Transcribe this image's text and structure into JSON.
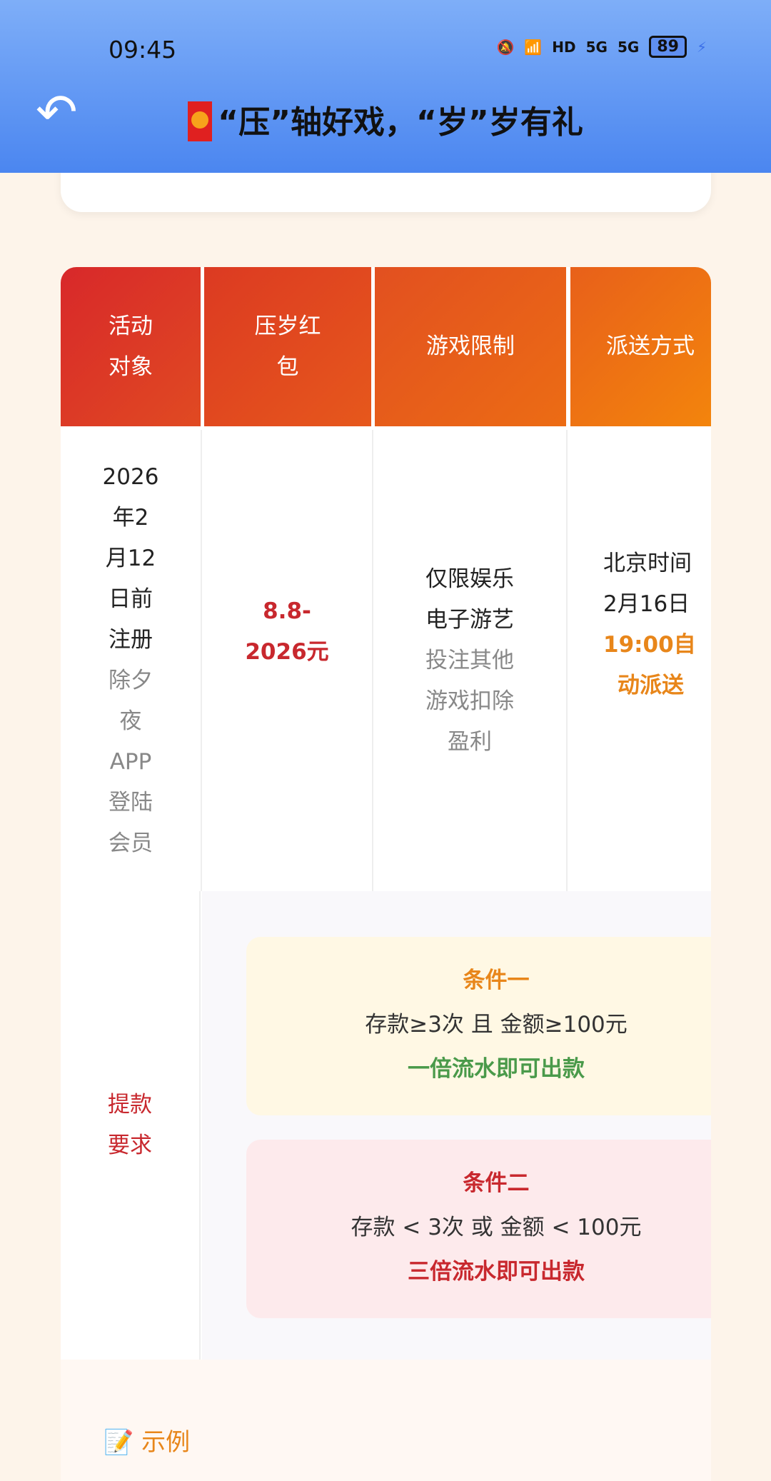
{
  "status_bar": {
    "time": "09:45",
    "icons": [
      "mute-icon",
      "wifi-icon",
      "hd-icon",
      "5g-signal-icon",
      "5g-signal-icon"
    ],
    "hd": "HD",
    "sig1": "5G",
    "sig2": "5G",
    "battery": "89"
  },
  "header": {
    "title": "“压”轴好戏，“岁”岁有礼",
    "back_icon": "back-arrow-icon",
    "emoji_icon": "red-envelope-icon"
  },
  "table": {
    "headers": [
      "活动\n对象",
      "压岁红\n包",
      "游戏限制",
      "派送方式"
    ],
    "row": {
      "target": {
        "main": [
          "2026",
          "年2",
          "月12",
          "日前",
          "注册"
        ],
        "sub": [
          "除夕",
          "夜",
          "APP",
          "登陆",
          "会员"
        ]
      },
      "amount": [
        "8.8-",
        "2026元"
      ],
      "game": {
        "main": [
          "仅限娱乐",
          "电子游艺"
        ],
        "sub": [
          "投注其他",
          "游戏扣除",
          "盈利"
        ]
      },
      "delivery": {
        "main": [
          "北京时间",
          "2月16日"
        ],
        "highlight": [
          "19:00自",
          "动派送"
        ]
      }
    },
    "withdraw_label": [
      "提款",
      "要求"
    ],
    "conditions": [
      {
        "title": "条件一",
        "rule": "存款≥3次 且 金额≥100元",
        "result": "一倍流水即可出款",
        "title_color": "#e8861a",
        "result_color": "#4a9a4a",
        "bg": "#fff8e4"
      },
      {
        "title": "条件二",
        "rule": "存款 < 3次 或 金额 < 100元",
        "result": "三倍流水即可出款",
        "title_color": "#c8282e",
        "result_color": "#c8282e",
        "bg": "#fdeaec"
      }
    ]
  },
  "example": {
    "icon": "memo-icon",
    "title": "示例"
  }
}
